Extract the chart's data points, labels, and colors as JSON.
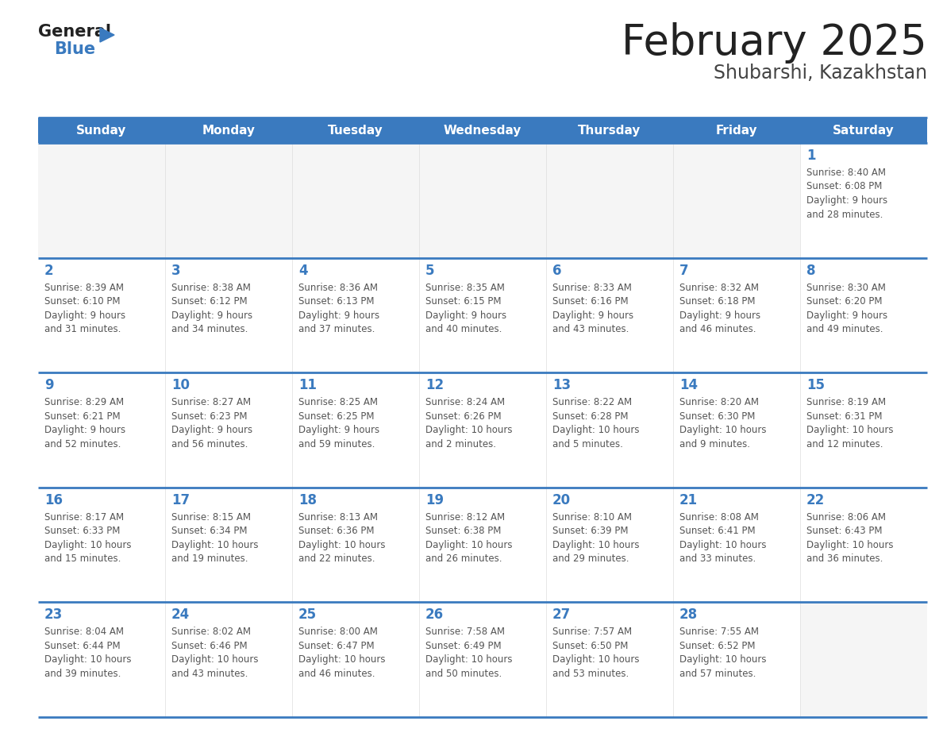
{
  "title": "February 2025",
  "subtitle": "Shubarshi, Kazakhstan",
  "days_of_week": [
    "Sunday",
    "Monday",
    "Tuesday",
    "Wednesday",
    "Thursday",
    "Friday",
    "Saturday"
  ],
  "header_bg": "#3a7abf",
  "header_text": "#ffffff",
  "cell_bg": "#ffffff",
  "cell_empty_bg": "#f5f5f5",
  "border_color": "#3a7abf",
  "day_num_color": "#3a7abf",
  "text_color": "#555555",
  "title_color": "#222222",
  "subtitle_color": "#444444",
  "calendar": [
    [
      {
        "day": null,
        "sunrise": null,
        "sunset": null,
        "daylight": null
      },
      {
        "day": null,
        "sunrise": null,
        "sunset": null,
        "daylight": null
      },
      {
        "day": null,
        "sunrise": null,
        "sunset": null,
        "daylight": null
      },
      {
        "day": null,
        "sunrise": null,
        "sunset": null,
        "daylight": null
      },
      {
        "day": null,
        "sunrise": null,
        "sunset": null,
        "daylight": null
      },
      {
        "day": null,
        "sunrise": null,
        "sunset": null,
        "daylight": null
      },
      {
        "day": 1,
        "sunrise": "8:40 AM",
        "sunset": "6:08 PM",
        "daylight": "9 hours",
        "daylight2": "and 28 minutes."
      }
    ],
    [
      {
        "day": 2,
        "sunrise": "8:39 AM",
        "sunset": "6:10 PM",
        "daylight": "9 hours",
        "daylight2": "and 31 minutes."
      },
      {
        "day": 3,
        "sunrise": "8:38 AM",
        "sunset": "6:12 PM",
        "daylight": "9 hours",
        "daylight2": "and 34 minutes."
      },
      {
        "day": 4,
        "sunrise": "8:36 AM",
        "sunset": "6:13 PM",
        "daylight": "9 hours",
        "daylight2": "and 37 minutes."
      },
      {
        "day": 5,
        "sunrise": "8:35 AM",
        "sunset": "6:15 PM",
        "daylight": "9 hours",
        "daylight2": "and 40 minutes."
      },
      {
        "day": 6,
        "sunrise": "8:33 AM",
        "sunset": "6:16 PM",
        "daylight": "9 hours",
        "daylight2": "and 43 minutes."
      },
      {
        "day": 7,
        "sunrise": "8:32 AM",
        "sunset": "6:18 PM",
        "daylight": "9 hours",
        "daylight2": "and 46 minutes."
      },
      {
        "day": 8,
        "sunrise": "8:30 AM",
        "sunset": "6:20 PM",
        "daylight": "9 hours",
        "daylight2": "and 49 minutes."
      }
    ],
    [
      {
        "day": 9,
        "sunrise": "8:29 AM",
        "sunset": "6:21 PM",
        "daylight": "9 hours",
        "daylight2": "and 52 minutes."
      },
      {
        "day": 10,
        "sunrise": "8:27 AM",
        "sunset": "6:23 PM",
        "daylight": "9 hours",
        "daylight2": "and 56 minutes."
      },
      {
        "day": 11,
        "sunrise": "8:25 AM",
        "sunset": "6:25 PM",
        "daylight": "9 hours",
        "daylight2": "and 59 minutes."
      },
      {
        "day": 12,
        "sunrise": "8:24 AM",
        "sunset": "6:26 PM",
        "daylight": "10 hours",
        "daylight2": "and 2 minutes."
      },
      {
        "day": 13,
        "sunrise": "8:22 AM",
        "sunset": "6:28 PM",
        "daylight": "10 hours",
        "daylight2": "and 5 minutes."
      },
      {
        "day": 14,
        "sunrise": "8:20 AM",
        "sunset": "6:30 PM",
        "daylight": "10 hours",
        "daylight2": "and 9 minutes."
      },
      {
        "day": 15,
        "sunrise": "8:19 AM",
        "sunset": "6:31 PM",
        "daylight": "10 hours",
        "daylight2": "and 12 minutes."
      }
    ],
    [
      {
        "day": 16,
        "sunrise": "8:17 AM",
        "sunset": "6:33 PM",
        "daylight": "10 hours",
        "daylight2": "and 15 minutes."
      },
      {
        "day": 17,
        "sunrise": "8:15 AM",
        "sunset": "6:34 PM",
        "daylight": "10 hours",
        "daylight2": "and 19 minutes."
      },
      {
        "day": 18,
        "sunrise": "8:13 AM",
        "sunset": "6:36 PM",
        "daylight": "10 hours",
        "daylight2": "and 22 minutes."
      },
      {
        "day": 19,
        "sunrise": "8:12 AM",
        "sunset": "6:38 PM",
        "daylight": "10 hours",
        "daylight2": "and 26 minutes."
      },
      {
        "day": 20,
        "sunrise": "8:10 AM",
        "sunset": "6:39 PM",
        "daylight": "10 hours",
        "daylight2": "and 29 minutes."
      },
      {
        "day": 21,
        "sunrise": "8:08 AM",
        "sunset": "6:41 PM",
        "daylight": "10 hours",
        "daylight2": "and 33 minutes."
      },
      {
        "day": 22,
        "sunrise": "8:06 AM",
        "sunset": "6:43 PM",
        "daylight": "10 hours",
        "daylight2": "and 36 minutes."
      }
    ],
    [
      {
        "day": 23,
        "sunrise": "8:04 AM",
        "sunset": "6:44 PM",
        "daylight": "10 hours",
        "daylight2": "and 39 minutes."
      },
      {
        "day": 24,
        "sunrise": "8:02 AM",
        "sunset": "6:46 PM",
        "daylight": "10 hours",
        "daylight2": "and 43 minutes."
      },
      {
        "day": 25,
        "sunrise": "8:00 AM",
        "sunset": "6:47 PM",
        "daylight": "10 hours",
        "daylight2": "and 46 minutes."
      },
      {
        "day": 26,
        "sunrise": "7:58 AM",
        "sunset": "6:49 PM",
        "daylight": "10 hours",
        "daylight2": "and 50 minutes."
      },
      {
        "day": 27,
        "sunrise": "7:57 AM",
        "sunset": "6:50 PM",
        "daylight": "10 hours",
        "daylight2": "and 53 minutes."
      },
      {
        "day": 28,
        "sunrise": "7:55 AM",
        "sunset": "6:52 PM",
        "daylight": "10 hours",
        "daylight2": "and 57 minutes."
      },
      {
        "day": null,
        "sunrise": null,
        "sunset": null,
        "daylight": null,
        "daylight2": null
      }
    ]
  ],
  "logo_text1": "General",
  "logo_text2": "Blue",
  "logo_triangle_color": "#3a7abf",
  "logo_text1_color": "#222222",
  "logo_text2_color": "#3a7abf"
}
